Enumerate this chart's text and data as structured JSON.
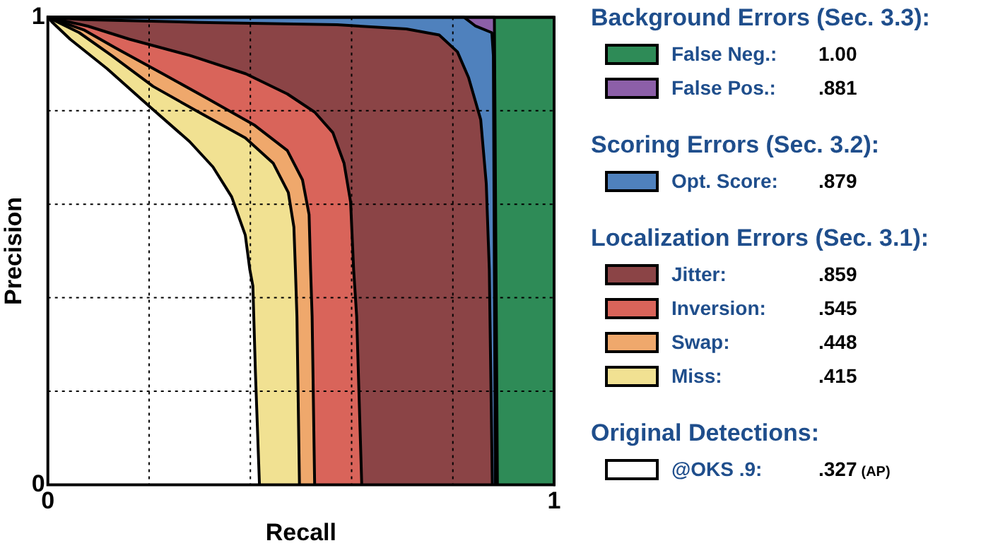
{
  "chart_data": {
    "type": "area",
    "xlabel": "Recall",
    "ylabel": "Precision",
    "xlim": [
      0,
      1
    ],
    "ylim": [
      0,
      1
    ],
    "xticks": [
      0,
      {
        "value": 0.2,
        "label": null
      },
      {
        "value": 0.4,
        "label": null
      },
      {
        "value": 0.6,
        "label": null
      },
      {
        "value": 0.8,
        "label": null
      },
      1
    ],
    "yticks": [
      0,
      {
        "value": 0.2,
        "label": null
      },
      {
        "value": 0.4,
        "label": null
      },
      {
        "value": 0.6,
        "label": null
      },
      {
        "value": 0.8,
        "label": null
      },
      1
    ],
    "grid": true,
    "legend": "right",
    "marker": "none",
    "line_style": "solid",
    "annotations": [
      "Background Errors (Sec. 3.3):",
      "Scoring Errors (Sec. 3.2):",
      "Localization Errors (Sec. 3.1):",
      "Original Detections:",
      "1.00",
      ".881",
      ".879",
      ".859",
      ".545",
      ".448",
      ".415",
      ".327",
      "(AP)"
    ],
    "series": [
      {
        "name": "False Neg.:",
        "color": "#2e8b57",
        "x": [
          0,
          1,
          1
        ],
        "values": [
          1,
          1,
          0
        ]
      },
      {
        "name": "False Pos.:",
        "color": "#8c5fa8",
        "x": [
          0,
          0.882,
          0.888
        ],
        "values": [
          1,
          1,
          0
        ]
      },
      {
        "name": "Opt. Score:",
        "color": "#4f81bd",
        "x": [
          0,
          0.822,
          0.845,
          0.877,
          0.88,
          0.884
        ],
        "values": [
          1,
          1,
          0.981,
          0.967,
          0.918,
          0
        ]
      },
      {
        "name": "Jitter:",
        "color": "#8b4446",
        "x": [
          0,
          0.071,
          0.298,
          0.571,
          0.708,
          0.773,
          0.809,
          0.831,
          0.855,
          0.866,
          0.872,
          0.878
        ],
        "values": [
          1,
          0.995,
          0.989,
          0.984,
          0.975,
          0.962,
          0.926,
          0.871,
          0.781,
          0.644,
          0.46,
          0
        ]
      },
      {
        "name": "Inversion:",
        "color": "#d9645a",
        "x": [
          0,
          0.079,
          0.161,
          0.281,
          0.391,
          0.473,
          0.527,
          0.563,
          0.585,
          0.598,
          0.604,
          0.61,
          0.62
        ],
        "values": [
          1,
          0.981,
          0.953,
          0.918,
          0.879,
          0.836,
          0.797,
          0.753,
          0.688,
          0.605,
          0.46,
          0.36,
          0
        ]
      },
      {
        "name": "Swap:",
        "color": "#efa86c",
        "x": [
          0,
          0.071,
          0.134,
          0.227,
          0.317,
          0.407,
          0.473,
          0.503,
          0.516,
          0.519,
          0.522,
          0.527
        ],
        "values": [
          1,
          0.973,
          0.934,
          0.879,
          0.825,
          0.77,
          0.715,
          0.652,
          0.578,
          0.46,
          0.36,
          0
        ]
      },
      {
        "name": "Miss:",
        "color": "#f1e192",
        "x": [
          0,
          0.062,
          0.126,
          0.208,
          0.298,
          0.39,
          0.445,
          0.475,
          0.486,
          0.489,
          0.492,
          0.497
        ],
        "values": [
          1,
          0.967,
          0.918,
          0.852,
          0.797,
          0.742,
          0.688,
          0.625,
          0.551,
          0.46,
          0.36,
          0
        ]
      },
      {
        "name": "@OKS .9:",
        "color": "#ffffff",
        "x": [
          0,
          0.008,
          0.044,
          0.117,
          0.2,
          0.28,
          0.326,
          0.363,
          0.39,
          0.399,
          0.405,
          0.41,
          0.418
        ],
        "values": [
          1,
          0.99,
          0.953,
          0.89,
          0.81,
          0.734,
          0.68,
          0.616,
          0.534,
          0.46,
          0.425,
          0.24,
          0
        ]
      }
    ]
  }
}
